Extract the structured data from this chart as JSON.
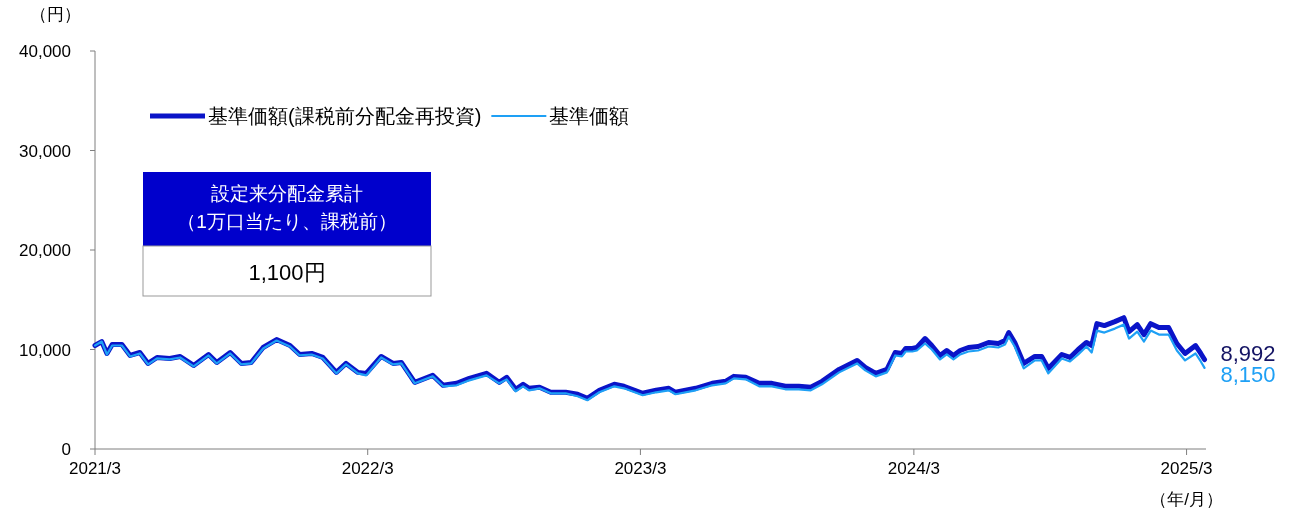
{
  "chart_data": {
    "type": "line",
    "ylabel": "（円）",
    "xlabel": "（年/月）",
    "xlim": [
      "2021-03-31",
      "2025-04-26"
    ],
    "xticks": [
      {
        "value": "2021-03-31",
        "label": "2021/3"
      },
      {
        "value": "2022-03-31",
        "label": "2022/3"
      },
      {
        "value": "2023-03-31",
        "label": "2023/3"
      },
      {
        "value": "2024-03-31",
        "label": "2024/3"
      },
      {
        "value": "2025-03-31",
        "label": "2025/3"
      }
    ],
    "ylim": [
      0,
      40000
    ],
    "yticks": [
      0,
      {
        "value": 10000,
        "label": "10,000"
      },
      {
        "value": 20000,
        "label": "20,000"
      },
      {
        "value": 30000,
        "label": "30,000"
      },
      {
        "value": 40000,
        "label": "40,000"
      }
    ],
    "grid": false,
    "legend": "top left",
    "line_style": "solid",
    "marker": "none",
    "x": [
      "2021-03-31",
      "2021-04-09",
      "2021-04-16",
      "2021-04-23",
      "2021-05-06",
      "2021-05-17",
      "2021-05-30",
      "2021-06-10",
      "2021-06-22",
      "2021-07-09",
      "2021-07-23",
      "2021-08-10",
      "2021-08-30",
      "2021-09-10",
      "2021-09-28",
      "2021-10-13",
      "2021-10-26",
      "2021-11-11",
      "2021-11-29",
      "2021-12-17",
      "2021-12-30",
      "2022-01-15",
      "2022-01-30",
      "2022-02-17",
      "2022-03-02",
      "2022-03-18",
      "2022-03-29",
      "2022-04-18",
      "2022-05-04",
      "2022-05-15",
      "2022-06-02",
      "2022-06-26",
      "2022-07-10",
      "2022-07-28",
      "2022-08-14",
      "2022-09-06",
      "2022-09-23",
      "2022-10-03",
      "2022-10-15",
      "2022-10-25",
      "2022-11-02",
      "2022-11-16",
      "2022-12-01",
      "2022-12-21",
      "2023-01-06",
      "2023-01-19",
      "2023-02-04",
      "2023-02-24",
      "2023-03-09",
      "2023-04-03",
      "2023-04-21",
      "2023-05-08",
      "2023-05-17",
      "2023-06-13",
      "2023-07-05",
      "2023-07-23",
      "2023-08-03",
      "2023-08-19",
      "2023-09-06",
      "2023-09-23",
      "2023-10-11",
      "2023-10-29",
      "2023-11-14",
      "2023-11-29",
      "2023-12-22",
      "2024-01-15",
      "2024-01-26",
      "2024-02-09",
      "2024-02-24",
      "2024-03-06",
      "2024-03-15",
      "2024-03-20",
      "2024-03-29",
      "2024-04-04",
      "2024-04-15",
      "2024-04-24",
      "2024-05-05",
      "2024-05-14",
      "2024-05-23",
      "2024-06-01",
      "2024-06-12",
      "2024-06-25",
      "2024-07-09",
      "2024-07-22",
      "2024-07-31",
      "2024-08-05",
      "2024-08-13",
      "2024-08-25",
      "2024-09-09",
      "2024-09-18",
      "2024-09-27",
      "2024-10-15",
      "2024-10-26",
      "2024-11-06",
      "2024-11-17",
      "2024-11-24",
      "2024-12-01",
      "2024-12-11",
      "2024-12-25",
      "2025-01-06",
      "2025-01-13",
      "2025-01-24",
      "2025-02-02",
      "2025-02-11",
      "2025-02-22",
      "2025-03-07",
      "2025-03-18",
      "2025-03-29",
      "2025-04-12",
      "2025-04-19",
      "2025-04-24"
    ],
    "series": [
      {
        "name": "基準価額(課税前分配金再投資)",
        "color": "#0a14c8",
        "values": [
          10400,
          10800,
          9600,
          10500,
          10500,
          9400,
          9700,
          8600,
          9200,
          9100,
          9300,
          8400,
          9500,
          8700,
          9700,
          8600,
          8700,
          10200,
          11000,
          10400,
          9500,
          9600,
          9200,
          7700,
          8600,
          7700,
          7600,
          9300,
          8600,
          8700,
          6700,
          7400,
          6400,
          6600,
          7100,
          7600,
          6700,
          7200,
          6000,
          6500,
          6100,
          6200,
          5700,
          5700,
          5500,
          5100,
          5900,
          6500,
          6300,
          5600,
          5900,
          6100,
          5700,
          6100,
          6600,
          6800,
          7300,
          7200,
          6600,
          6600,
          6300,
          6300,
          6200,
          6800,
          8000,
          8900,
          8200,
          7600,
          8000,
          9700,
          9600,
          10100,
          10100,
          10200,
          11100,
          10400,
          9400,
          9900,
          9400,
          9900,
          10200,
          10300,
          10700,
          10600,
          10900,
          11700,
          10700,
          8600,
          9300,
          9300,
          8100,
          9500,
          9200,
          10000,
          10700,
          10400,
          12600,
          12400,
          12800,
          13200,
          11800,
          12500,
          11500,
          12600,
          12200,
          12200,
          10600,
          9600,
          10400,
          9600,
          8992
        ]
      },
      {
        "name": "基準価額",
        "color": "#1ea0f5",
        "values": [
          10400,
          10800,
          9500,
          10400,
          10400,
          9300,
          9600,
          8500,
          9100,
          9000,
          9200,
          8300,
          9400,
          8600,
          9600,
          8500,
          8600,
          10100,
          10900,
          10300,
          9400,
          9500,
          9100,
          7600,
          8500,
          7600,
          7400,
          9200,
          8500,
          8600,
          6600,
          7300,
          6300,
          6400,
          6900,
          7400,
          6600,
          7000,
          5800,
          6300,
          5900,
          6100,
          5600,
          5600,
          5300,
          4900,
          5700,
          6300,
          6100,
          5400,
          5700,
          5900,
          5500,
          5900,
          6400,
          6600,
          7100,
          7000,
          6300,
          6300,
          6000,
          6000,
          5900,
          6500,
          7700,
          8600,
          7900,
          7300,
          7700,
          9400,
          9300,
          9800,
          9800,
          9900,
          10600,
          10000,
          9000,
          9500,
          9000,
          9500,
          9800,
          9900,
          10300,
          10200,
          10500,
          11300,
          10300,
          8100,
          8900,
          8900,
          7600,
          9100,
          8800,
          9500,
          10300,
          9700,
          11900,
          11700,
          12100,
          12500,
          11100,
          11800,
          10800,
          11900,
          11500,
          11500,
          9900,
          8900,
          9600,
          8800,
          8150
        ]
      }
    ],
    "annotations": [
      "設定来分配金累計",
      "（1万口当たり、課税前）",
      "1,100円",
      {
        "text": "8,992",
        "x": "2025-04-24",
        "y": 8992
      },
      {
        "text": "8,150",
        "x": "2025-04-24",
        "y": 8150
      }
    ]
  }
}
